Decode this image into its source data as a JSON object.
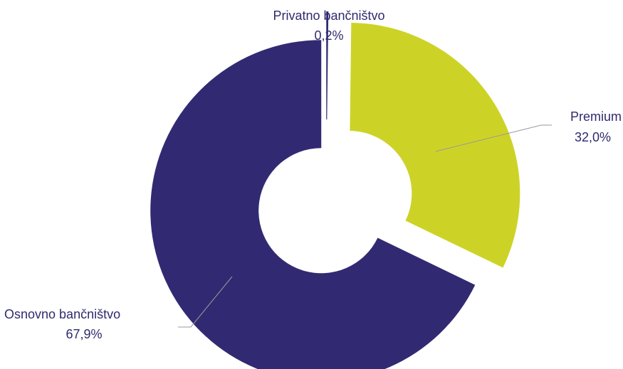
{
  "chart_data": {
    "type": "pie",
    "donut": true,
    "exploded": true,
    "legend": "none",
    "slices": [
      {
        "label": "Privatno bančništvo",
        "value": 0.2,
        "value_label": "0,2%",
        "color": "#2f2a72"
      },
      {
        "label": "Premium",
        "value": 32.0,
        "value_label": "32,0%",
        "color": "#cdd326"
      },
      {
        "label": "Osnovno bančništvo",
        "value": 67.9,
        "value_label": "67,9%",
        "color": "#312a72"
      }
    ],
    "leader_line_color": "#999999"
  }
}
